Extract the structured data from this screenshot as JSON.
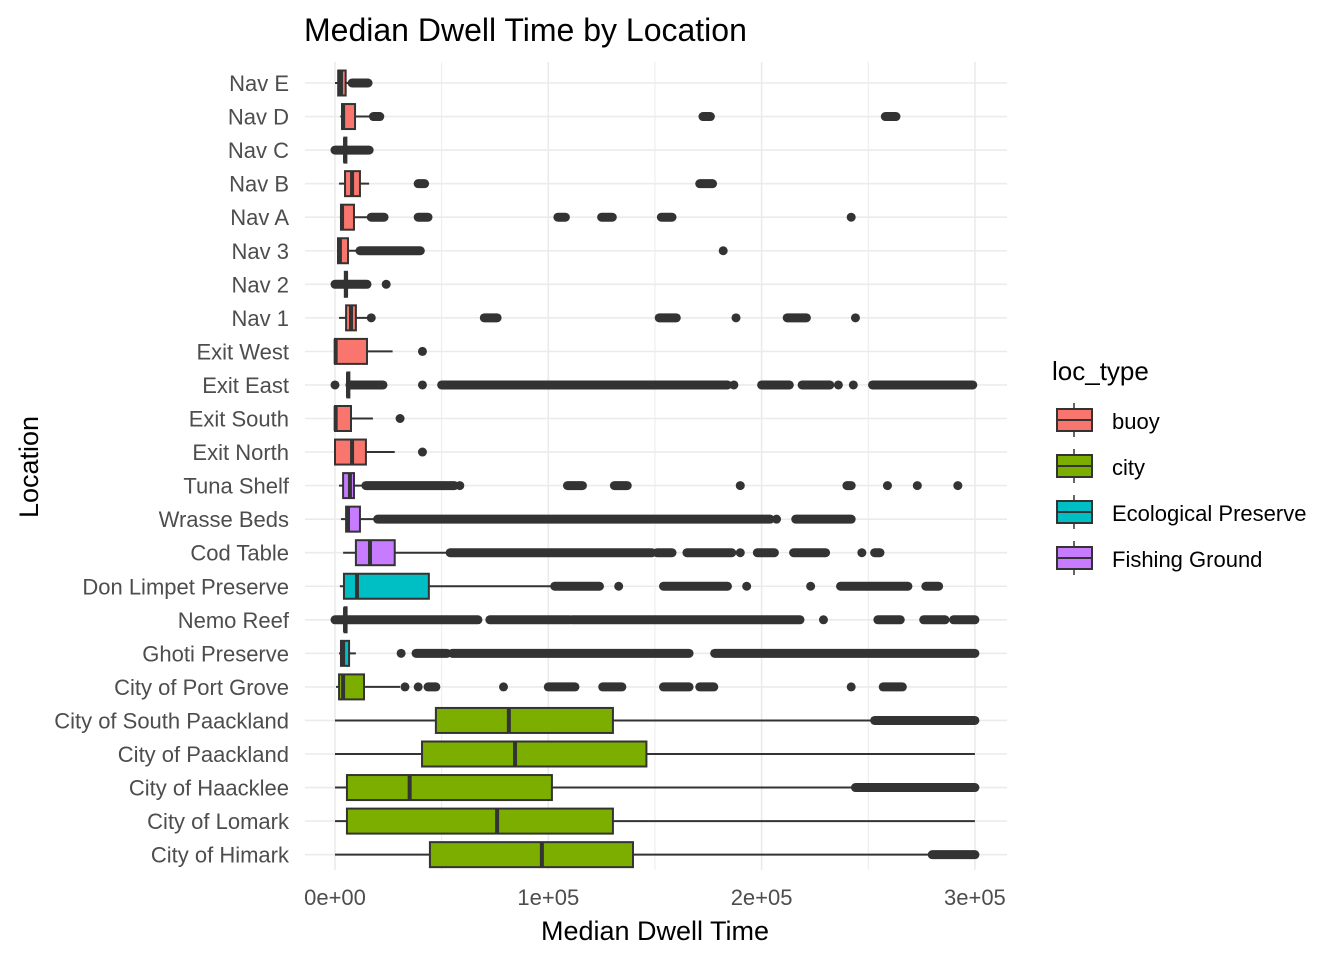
{
  "chart_data": {
    "type": "boxplot",
    "orientation": "horizontal",
    "title": "Median Dwell Time by Location",
    "xlabel": "Median Dwell Time",
    "ylabel": "Location",
    "xlim": [
      -15000,
      315000
    ],
    "xticks": [
      0,
      100000,
      200000,
      300000
    ],
    "xtick_labels": [
      "0e+00",
      "1e+05",
      "2e+05",
      "3e+05"
    ],
    "grid": true,
    "legend": {
      "title": "loc_type",
      "placement": "right",
      "entries": [
        {
          "name": "buoy",
          "color": "#F8766D"
        },
        {
          "name": "city",
          "color": "#7CAE00"
        },
        {
          "name": "Ecological Preserve",
          "color": "#00BFC4"
        },
        {
          "name": "Fishing Ground",
          "color": "#C77CFF"
        }
      ]
    },
    "series": [
      {
        "name": "Nav E",
        "type": "buoy",
        "whisker": [
          0,
          7500
        ],
        "box": [
          1500,
          2800,
          5000
        ],
        "outlier_bands": [
          [
            8000,
            15500
          ]
        ],
        "outliers": []
      },
      {
        "name": "Nav D",
        "type": "buoy",
        "whisker": [
          2500,
          16400
        ],
        "box": [
          3300,
          3800,
          9400
        ],
        "outlier_bands": [
          [
            18000,
            21000
          ],
          [
            172500,
            176000
          ],
          [
            258000,
            263000
          ]
        ],
        "outliers": []
      },
      {
        "name": "Nav C",
        "type": "buoy",
        "whisker": [
          4000,
          5500
        ],
        "box": [
          4400,
          4700,
          5000
        ],
        "outlier_bands": [
          [
            0,
            16000
          ]
        ],
        "outliers": []
      },
      {
        "name": "Nav B",
        "type": "buoy",
        "whisker": [
          1900,
          16000
        ],
        "box": [
          4700,
          8000,
          11700
        ],
        "outlier_bands": [
          [
            39000,
            42000
          ],
          [
            171000,
            177000
          ]
        ],
        "outliers": []
      },
      {
        "name": "Nav A",
        "type": "buoy",
        "whisker": [
          2300,
          16400
        ],
        "box": [
          2800,
          3300,
          8900
        ],
        "outlier_bands": [
          [
            17000,
            23000
          ],
          [
            39000,
            43600
          ],
          [
            104500,
            108000
          ],
          [
            125000,
            130000
          ],
          [
            153000,
            158000
          ]
        ],
        "outliers": [
          242000
        ]
      },
      {
        "name": "Nav 3",
        "type": "buoy",
        "whisker": [
          1000,
          10800
        ],
        "box": [
          1400,
          2300,
          6100
        ],
        "outlier_bands": [
          [
            11700,
            40000
          ]
        ],
        "outliers": [
          182000
        ]
      },
      {
        "name": "Nav 2",
        "type": "buoy",
        "whisker": [
          4000,
          6000
        ],
        "box": [
          4600,
          5200,
          5600
        ],
        "outlier_bands": [
          [
            0,
            15000
          ]
        ],
        "outliers": [
          24000
        ]
      },
      {
        "name": "Nav 1",
        "type": "buoy",
        "whisker": [
          1900,
          15000
        ],
        "box": [
          5200,
          7500,
          9800
        ],
        "outlier_bands": [
          [
            70000,
            76000
          ],
          [
            152000,
            160000
          ],
          [
            212000,
            221000
          ]
        ],
        "outliers": [
          17000,
          188000,
          244000
        ]
      },
      {
        "name": "Exit West",
        "type": "buoy",
        "whisker": [
          0,
          27000
        ],
        "box": [
          0,
          300,
          15000
        ],
        "outlier_bands": [],
        "outliers": [
          41000
        ]
      },
      {
        "name": "Exit East",
        "type": "buoy",
        "whisker": [
          5500,
          6800
        ],
        "box": [
          5800,
          6100,
          6400
        ],
        "outlier_bands": [
          [
            7000,
            22500
          ],
          [
            50000,
            184000
          ],
          [
            200000,
            213000
          ],
          [
            219000,
            232000
          ],
          [
            252000,
            299000
          ]
        ],
        "outliers": [
          0,
          41000,
          187000,
          236000,
          243000
        ]
      },
      {
        "name": "Exit South",
        "type": "buoy",
        "whisker": [
          0,
          17800
        ],
        "box": [
          0,
          300,
          7500
        ],
        "outlier_bands": [],
        "outliers": [
          30500
        ]
      },
      {
        "name": "Exit North",
        "type": "buoy",
        "whisker": [
          0,
          28000
        ],
        "box": [
          0,
          8000,
          14500
        ],
        "outlier_bands": [],
        "outliers": [
          41000
        ]
      },
      {
        "name": "Tuna Shelf",
        "type": "Fishing Ground",
        "whisker": [
          1900,
          14500
        ],
        "box": [
          3800,
          7000,
          8900
        ],
        "outlier_bands": [
          [
            14500,
            56000
          ],
          [
            109000,
            116000
          ],
          [
            131000,
            137000
          ],
          [
            240000,
            242000
          ]
        ],
        "outliers": [
          58500,
          190000,
          259000,
          273000,
          292000
        ]
      },
      {
        "name": "Wrasse Beds",
        "type": "Fishing Ground",
        "whisker": [
          2800,
          19000
        ],
        "box": [
          5200,
          6100,
          11700
        ],
        "outlier_bands": [
          [
            20000,
            204000
          ],
          [
            216000,
            242000
          ]
        ],
        "outliers": [
          207000
        ]
      },
      {
        "name": "Cod Table",
        "type": "Fishing Ground",
        "whisker": [
          3800,
          54000
        ],
        "box": [
          9800,
          16400,
          28000
        ],
        "outlier_bands": [
          [
            54000,
            148600
          ],
          [
            151000,
            158000
          ],
          [
            165000,
            186000
          ],
          [
            198000,
            206000
          ],
          [
            215000,
            230000
          ],
          [
            253000,
            255500
          ]
        ],
        "outliers": [
          190000,
          247000
        ]
      },
      {
        "name": "Don Limpet Preserve",
        "type": "Ecological Preserve",
        "whisker": [
          2300,
          102000
        ],
        "box": [
          4200,
          10300,
          44000
        ],
        "outlier_bands": [
          [
            103000,
            124000
          ],
          [
            154000,
            184000
          ],
          [
            237000,
            268600
          ],
          [
            277000,
            283000
          ]
        ],
        "outliers": [
          133000,
          193000,
          223000
        ]
      },
      {
        "name": "Nemo Reef",
        "type": "Ecological Preserve",
        "whisker": [
          4300,
          5200
        ],
        "box": [
          4500,
          4700,
          5000
        ],
        "outlier_bands": [
          [
            0,
            67000
          ],
          [
            72600,
            110000
          ],
          [
            111000,
            218000
          ],
          [
            254500,
            265000
          ],
          [
            276000,
            286000
          ],
          [
            290000,
            300000
          ]
        ],
        "outliers": [
          229000
        ]
      },
      {
        "name": "Ghoti Preserve",
        "type": "Ecological Preserve",
        "whisker": [
          1900,
          9800
        ],
        "box": [
          2800,
          3800,
          6600
        ],
        "outlier_bands": [
          [
            38000,
            52500
          ],
          [
            55000,
            166000
          ],
          [
            178000,
            300000
          ]
        ],
        "outliers": [
          31000
        ]
      },
      {
        "name": "City of Port Grove",
        "type": "city",
        "whisker": [
          500,
          30500
        ],
        "box": [
          1900,
          3800,
          13600
        ],
        "outlier_bands": [
          [
            43600,
            47300
          ],
          [
            100000,
            112500
          ],
          [
            125500,
            134500
          ],
          [
            154000,
            166000
          ],
          [
            171000,
            177600
          ],
          [
            257000,
            266000
          ]
        ],
        "outliers": [
          32800,
          39000,
          79000,
          242000
        ]
      },
      {
        "name": "City of South Paackland",
        "type": "city",
        "whisker": [
          0,
          253000
        ],
        "box": [
          47300,
          81500,
          130300
        ],
        "outlier_bands": [
          [
            253000,
            300000
          ]
        ],
        "outliers": []
      },
      {
        "name": "City of Paackland",
        "type": "city",
        "whisker": [
          0,
          300000
        ],
        "box": [
          40800,
          84400,
          146000
        ],
        "outlier_bands": [],
        "outliers": []
      },
      {
        "name": "City of Haacklee",
        "type": "city",
        "whisker": [
          0,
          244000
        ],
        "box": [
          5600,
          35000,
          101700
        ],
        "outlier_bands": [
          [
            244000,
            300000
          ]
        ],
        "outliers": []
      },
      {
        "name": "City of Lomark",
        "type": "city",
        "whisker": [
          0,
          300000
        ],
        "box": [
          5600,
          76000,
          130300
        ],
        "outlier_bands": [],
        "outliers": []
      },
      {
        "name": "City of Himark",
        "type": "city",
        "whisker": [
          0,
          280000
        ],
        "box": [
          44500,
          97000,
          139700
        ],
        "outlier_bands": [
          [
            280000,
            300000
          ]
        ],
        "outliers": []
      }
    ]
  }
}
